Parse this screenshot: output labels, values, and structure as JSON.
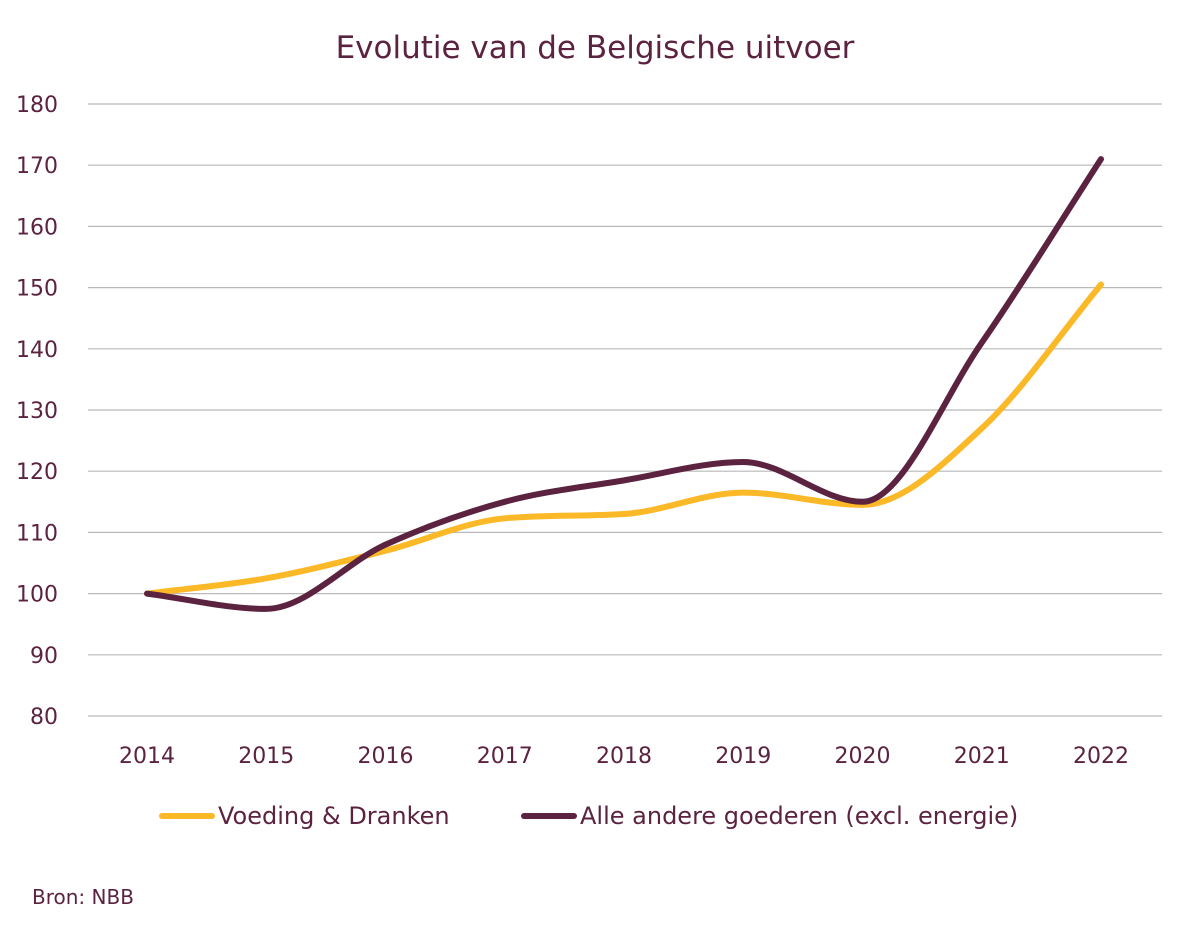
{
  "chart_data": {
    "type": "line",
    "title": "Evolutie van de Belgische uitvoer",
    "x": [
      "2014",
      "2015",
      "2016",
      "2017",
      "2018",
      "2019",
      "2020",
      "2021",
      "2022"
    ],
    "yticks": [
      "80",
      "90",
      "100",
      "110",
      "120",
      "130",
      "140",
      "150",
      "160",
      "170",
      "180"
    ],
    "ylim": [
      80,
      180
    ],
    "grid": true,
    "legend_position": "bottom",
    "series": [
      {
        "name": "Voeding & Dranken",
        "color": "#fbb827",
        "values": [
          100,
          102.5,
          107,
          112.3,
          113,
          116.5,
          114.5,
          127,
          150.5
        ]
      },
      {
        "name": "Alle andere goederen (excl. energie)",
        "color": "#5c2340",
        "values": [
          100,
          97.5,
          108,
          115,
          118.5,
          121.5,
          115,
          141,
          171
        ]
      }
    ],
    "xlabel": "",
    "ylabel": ""
  },
  "source": "Bron: NBB"
}
